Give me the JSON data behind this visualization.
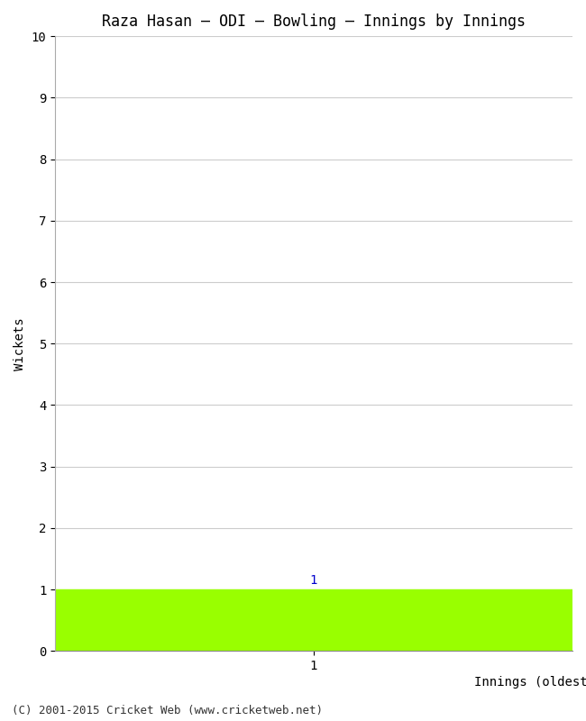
{
  "title": "Raza Hasan – ODI – Bowling – Innings by Innings",
  "xlabel": "Innings (oldest to newest)",
  "ylabel": "Wickets",
  "bar_values": [
    1
  ],
  "bar_color": "#99ff00",
  "ylim": [
    0,
    10
  ],
  "yticks": [
    0,
    1,
    2,
    3,
    4,
    5,
    6,
    7,
    8,
    9,
    10
  ],
  "xlim": [
    0.5,
    1.5
  ],
  "xtick_pos": 1.0,
  "xtick_label": "1",
  "background_color": "#ffffff",
  "grid_color": "#cccccc",
  "footer_text": "(C) 2001-2015 Cricket Web (www.cricketweb.net)",
  "title_fontsize": 12,
  "axis_fontsize": 10,
  "footer_fontsize": 9,
  "label_color": "#0000cc"
}
